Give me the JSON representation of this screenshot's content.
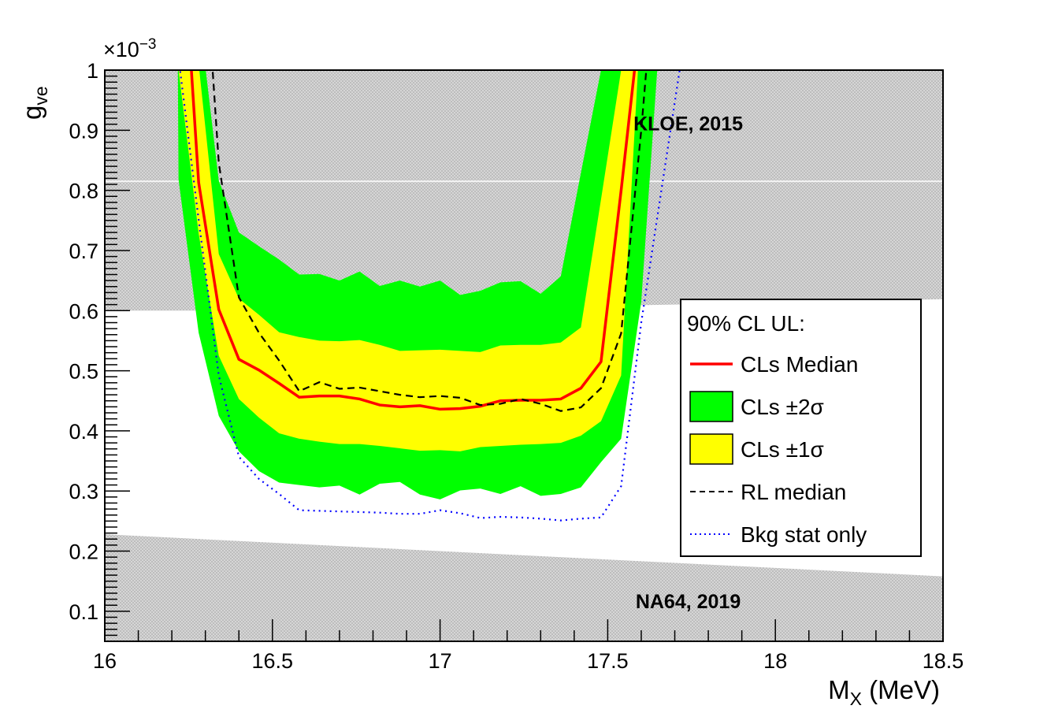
{
  "chart_data": {
    "type": "area",
    "title": "",
    "xlabel": "M",
    "xlabel_sub": "X",
    "xlabel_unit": " (MeV)",
    "ylabel": "g",
    "ylabel_sub": "ve",
    "y_exponent_label": "×10",
    "y_exponent_power": "−3",
    "xlim": [
      16,
      18.5
    ],
    "ylim": [
      0.05,
      1.0
    ],
    "grid": false,
    "x_ticks": [
      16,
      16.5,
      17,
      17.5,
      18,
      18.5
    ],
    "x_tick_labels": [
      "16",
      "16.5",
      "17",
      "17.5",
      "18",
      "18.5"
    ],
    "y_ticks": [
      0.1,
      0.2,
      0.3,
      0.4,
      0.5,
      0.6,
      0.7,
      0.8,
      0.9,
      1.0
    ],
    "y_tick_labels": [
      "0.1",
      "0.2",
      "0.3",
      "0.4",
      "0.5",
      "0.6",
      "0.7",
      "0.8",
      "0.9",
      "1"
    ],
    "excluded_regions": [
      {
        "name": "KLOE, 2015",
        "boundary": "lower",
        "x": [
          16.0,
          16.5,
          17.0,
          17.5,
          18.0,
          18.5
        ],
        "y": [
          0.6,
          0.6,
          0.603,
          0.608,
          0.613,
          0.619
        ],
        "color": "#c8c8c8"
      },
      {
        "name": "NA64, 2019",
        "boundary": "upper",
        "x": [
          16.0,
          18.5
        ],
        "y": [
          0.228,
          0.158
        ],
        "color": "#c8c8c8"
      }
    ],
    "bands": [
      {
        "name": "CLs ±2σ",
        "color": "#00ff00",
        "x_upper": [
          16.22,
          16.28,
          16.34,
          16.4,
          16.46,
          16.52,
          16.58,
          16.64,
          16.7,
          16.76,
          16.82,
          16.88,
          16.94,
          17.0,
          17.06,
          17.12,
          17.18,
          17.24,
          17.3,
          17.36,
          17.42,
          17.48
        ],
        "upper": [
          1.6,
          1.1,
          0.816,
          0.73,
          0.707,
          0.685,
          0.66,
          0.661,
          0.65,
          0.665,
          0.641,
          0.65,
          0.64,
          0.65,
          0.626,
          0.633,
          0.647,
          0.649,
          0.628,
          0.657,
          0.829,
          1.0
        ],
        "x_lower": [
          16.16,
          16.22,
          16.28,
          16.34,
          16.4,
          16.46,
          16.52,
          16.58,
          16.64,
          16.7,
          16.76,
          16.82,
          16.88,
          16.94,
          17.0,
          17.06,
          17.12,
          17.18,
          17.24,
          17.3,
          17.36,
          17.42,
          17.48,
          17.54,
          17.6,
          17.66
        ],
        "lower": [
          6.0,
          0.818,
          0.563,
          0.425,
          0.366,
          0.333,
          0.314,
          0.31,
          0.306,
          0.309,
          0.294,
          0.312,
          0.315,
          0.294,
          0.286,
          0.301,
          0.304,
          0.295,
          0.308,
          0.292,
          0.295,
          0.306,
          0.348,
          0.387,
          0.615,
          1.1
        ]
      },
      {
        "name": "CLs ±1σ",
        "color": "#ffff00",
        "x_upper": [
          16.22,
          16.28,
          16.34,
          16.4,
          16.46,
          16.52,
          16.58,
          16.64,
          16.7,
          16.76,
          16.82,
          16.88,
          16.94,
          17.0,
          17.06,
          17.12,
          17.18,
          17.24,
          17.3,
          17.36,
          17.42,
          17.48,
          17.54
        ],
        "upper": [
          1.6,
          1.01,
          0.694,
          0.62,
          0.593,
          0.564,
          0.556,
          0.55,
          0.549,
          0.551,
          0.543,
          0.533,
          0.534,
          0.535,
          0.533,
          0.531,
          0.542,
          0.543,
          0.543,
          0.547,
          0.572,
          0.785,
          1.0
        ],
        "x_lower": [
          16.16,
          16.22,
          16.28,
          16.34,
          16.4,
          16.46,
          16.52,
          16.58,
          16.64,
          16.7,
          16.76,
          16.82,
          16.88,
          16.94,
          17.0,
          17.06,
          17.12,
          17.18,
          17.24,
          17.3,
          17.36,
          17.42,
          17.48,
          17.54,
          17.6
        ],
        "lower": [
          3.0,
          1.0,
          0.728,
          0.525,
          0.453,
          0.422,
          0.396,
          0.387,
          0.382,
          0.378,
          0.378,
          0.375,
          0.371,
          0.367,
          0.368,
          0.366,
          0.373,
          0.375,
          0.377,
          0.378,
          0.38,
          0.392,
          0.416,
          0.492,
          1.1
        ]
      }
    ],
    "series": [
      {
        "name": "CLs Median",
        "style": "solid",
        "color": "#ff0000",
        "x": [
          16.22,
          16.28,
          16.34,
          16.4,
          16.46,
          16.52,
          16.58,
          16.64,
          16.7,
          16.76,
          16.82,
          16.88,
          16.94,
          17.0,
          17.06,
          17.12,
          17.18,
          17.24,
          17.3,
          17.36,
          17.42,
          17.48,
          17.54,
          17.6
        ],
        "values": [
          1.33,
          0.813,
          0.602,
          0.519,
          0.501,
          0.479,
          0.456,
          0.458,
          0.458,
          0.453,
          0.443,
          0.44,
          0.442,
          0.436,
          0.437,
          0.441,
          0.45,
          0.451,
          0.451,
          0.453,
          0.471,
          0.515,
          0.8,
          1.1
        ]
      },
      {
        "name": "RL median",
        "style": "dashed",
        "color": "#000000",
        "x": [
          16.28,
          16.34,
          16.4,
          16.46,
          16.52,
          16.58,
          16.64,
          16.7,
          16.76,
          16.82,
          16.88,
          16.94,
          17.0,
          17.06,
          17.12,
          17.18,
          17.24,
          17.3,
          17.36,
          17.42,
          17.48,
          17.54,
          17.6,
          17.66
        ],
        "values": [
          1.35,
          0.846,
          0.622,
          0.563,
          0.517,
          0.466,
          0.481,
          0.47,
          0.472,
          0.466,
          0.46,
          0.456,
          0.458,
          0.455,
          0.443,
          0.445,
          0.453,
          0.445,
          0.433,
          0.439,
          0.471,
          0.562,
          0.9,
          1.3
        ]
      },
      {
        "name": "Bkg stat only",
        "style": "dotted",
        "color": "#0000ff",
        "x": [
          16.16,
          16.22,
          16.28,
          16.34,
          16.4,
          16.46,
          16.52,
          16.58,
          16.64,
          16.7,
          16.76,
          16.82,
          16.88,
          16.94,
          17.0,
          17.06,
          17.12,
          17.18,
          17.24,
          17.3,
          17.36,
          17.42,
          17.48,
          17.54,
          17.6,
          17.66,
          17.72
        ],
        "values": [
          1.4,
          1.02,
          0.751,
          0.492,
          0.357,
          0.32,
          0.295,
          0.268,
          0.267,
          0.266,
          0.265,
          0.264,
          0.262,
          0.262,
          0.268,
          0.263,
          0.255,
          0.257,
          0.256,
          0.254,
          0.251,
          0.254,
          0.256,
          0.308,
          0.58,
          0.8,
          1.02
        ]
      }
    ],
    "annotations": [
      {
        "text": "KLOE, 2015",
        "x": 17.74,
        "y": 0.9
      },
      {
        "text": "NA64, 2019",
        "x": 17.74,
        "y": 0.105
      }
    ],
    "legend": {
      "placement": "right",
      "header": "90% CL UL:",
      "entries": [
        {
          "label": "CLs Median",
          "kind": "line",
          "color": "#ff0000",
          "style": "solid"
        },
        {
          "label": "CLs ±2σ",
          "kind": "box",
          "color": "#00ff00"
        },
        {
          "label": "CLs ±1σ",
          "kind": "box",
          "color": "#ffff00"
        },
        {
          "label": "RL median",
          "kind": "line",
          "color": "#000000",
          "style": "dashed"
        },
        {
          "label": "Bkg stat only",
          "kind": "line",
          "color": "#0000ff",
          "style": "dotted"
        }
      ]
    }
  }
}
